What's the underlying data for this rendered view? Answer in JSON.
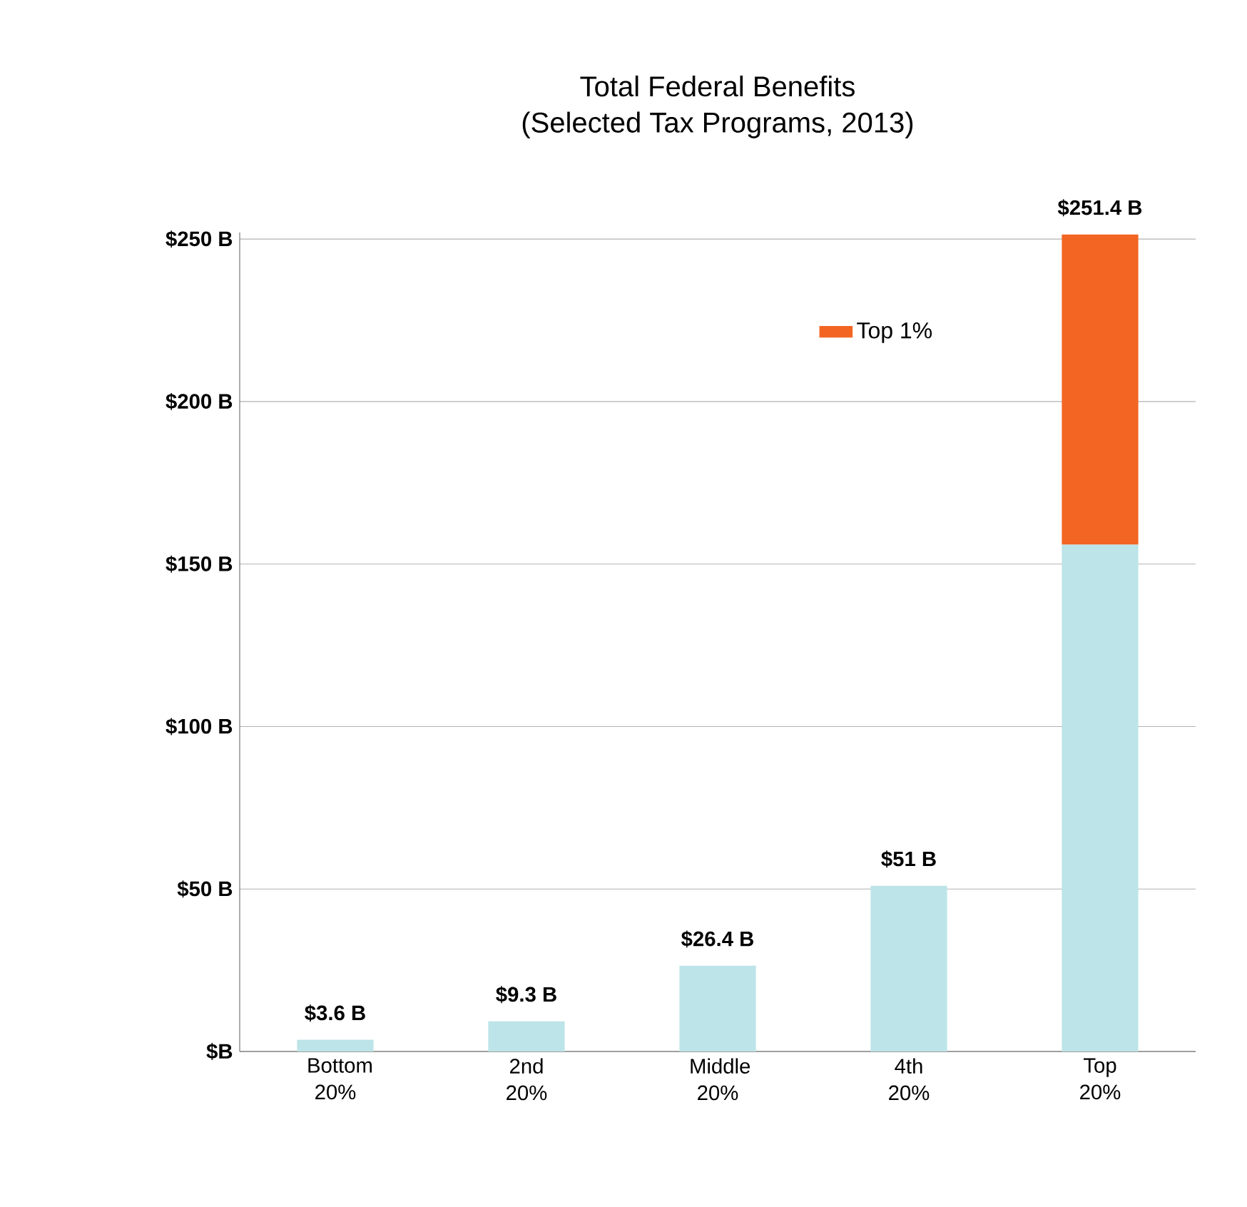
{
  "chart_data": {
    "type": "bar",
    "stacked": true,
    "title": "Total Federal Benefits",
    "subtitle": "(Selected Tax Programs, 2013)",
    "categories": [
      "Bottom 20%",
      "2nd 20%",
      "Middle 20%",
      "4th 20%",
      "Top 20%"
    ],
    "series": [
      {
        "color": "#bde4e8",
        "values": [
          3.6,
          9.3,
          26.4,
          51,
          156
        ]
      },
      {
        "name": "Top 1%",
        "color": "#f26522",
        "values": [
          null,
          null,
          null,
          null,
          95.4
        ]
      }
    ],
    "totals": [
      "$3.6 B",
      "$9.3 B",
      "$26.4 B",
      "$51 B",
      "$251.4 B"
    ],
    "ylim": [
      0,
      252
    ],
    "yticks": [
      {
        "value": 0,
        "label": "$B"
      },
      {
        "value": 50,
        "label": "$50 B"
      },
      {
        "value": 100,
        "label": "$100 B"
      },
      {
        "value": 150,
        "label": "$150 B"
      },
      {
        "value": 200,
        "label": "$200 B"
      },
      {
        "value": 250,
        "label": "$250 B"
      }
    ],
    "grid": "y",
    "legend": "top right"
  }
}
